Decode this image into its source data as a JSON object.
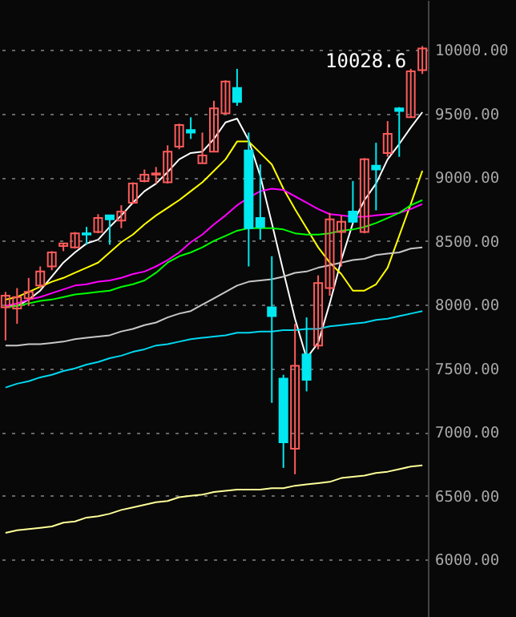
{
  "chart_data": {
    "type": "candlestick",
    "categories": [
      null,
      null,
      null,
      null,
      null,
      null,
      null,
      null,
      null,
      null,
      null,
      null,
      null,
      null,
      null,
      null,
      null,
      null,
      null,
      null,
      null,
      null,
      null,
      null,
      null,
      null,
      null,
      null,
      null,
      null,
      null,
      null,
      null,
      null,
      null,
      null,
      null
    ],
    "ohlc": [
      [
        7980,
        8100,
        7720,
        8070
      ],
      [
        7970,
        8130,
        7850,
        8060
      ],
      [
        8050,
        8210,
        7990,
        8100
      ],
      [
        8150,
        8300,
        8130,
        8260
      ],
      [
        8300,
        8420,
        8270,
        8410
      ],
      [
        8460,
        8480,
        8420,
        8480
      ],
      [
        8450,
        8570,
        8440,
        8560
      ],
      [
        8560,
        8610,
        8470,
        8550
      ],
      [
        8570,
        8710,
        8560,
        8680
      ],
      [
        8700,
        8700,
        8470,
        8670
      ],
      [
        8660,
        8780,
        8600,
        8730
      ],
      [
        8800,
        8960,
        8790,
        8950
      ],
      [
        8970,
        9060,
        8960,
        9020
      ],
      [
        9020,
        9080,
        8950,
        9030
      ],
      [
        8960,
        9250,
        8950,
        9200
      ],
      [
        9240,
        9420,
        9220,
        9410
      ],
      [
        9370,
        9470,
        9300,
        9350
      ],
      [
        9110,
        9350,
        9110,
        9170
      ],
      [
        9200,
        9600,
        9200,
        9540
      ],
      [
        9500,
        9760,
        9500,
        9750
      ],
      [
        9700,
        9850,
        9560,
        9590
      ],
      [
        9210,
        9350,
        8300,
        8600
      ],
      [
        8680,
        9100,
        8510,
        8610
      ],
      [
        7980,
        8380,
        7230,
        7910
      ],
      [
        7420,
        7450,
        6720,
        6920
      ],
      [
        6870,
        7850,
        6670,
        7520
      ],
      [
        7610,
        7900,
        7320,
        7410
      ],
      [
        7680,
        8230,
        7650,
        8170
      ],
      [
        8130,
        8720,
        8070,
        8670
      ],
      [
        8570,
        8700,
        8300,
        8650
      ],
      [
        8730,
        8970,
        8640,
        8650
      ],
      [
        8570,
        9150,
        8560,
        9140
      ],
      [
        9090,
        9270,
        8740,
        9060
      ],
      [
        9190,
        9440,
        9160,
        9340
      ],
      [
        9540,
        9550,
        9160,
        9520
      ],
      [
        9470,
        9850,
        9470,
        9830
      ],
      [
        9840,
        10028.6,
        9810,
        10010
      ]
    ],
    "colors": [
      "#ff5b5b",
      "#ff5b5b",
      "#ff5b5b",
      "#ff5b5b",
      "#ff5b5b",
      "#ff5b5b",
      "#ff5b5b",
      "#00e8f0",
      "#ff5b5b",
      "#00e8f0",
      "#ff5b5b",
      "#ff5b5b",
      "#ff5b5b",
      "#ff5b5b",
      "#ff5b5b",
      "#ff5b5b",
      "#00e8f0",
      "#ff5b5b",
      "#ff5b5b",
      "#ff5b5b",
      "#00e8f0",
      "#00e8f0",
      "#00e8f0",
      "#00e8f0",
      "#00e8f0",
      "#ff5b5b",
      "#00e8f0",
      "#ff5b5b",
      "#ff5b5b",
      "#ff5b5b",
      "#00e8f0",
      "#ff5b5b",
      "#00e8f0",
      "#ff5b5b",
      "#00e8f0",
      "#ff5b5b",
      "#ff5b5b"
    ],
    "series": [
      {
        "type": "line",
        "color": "#ffffff",
        "values": [
          7990,
          7990,
          8040,
          8110,
          8220,
          8330,
          8410,
          8480,
          8510,
          8610,
          8700,
          8800,
          8890,
          8950,
          9040,
          9140,
          9190,
          9200,
          9300,
          9430,
          9460,
          9290,
          9010,
          8640,
          8260,
          7890,
          7580,
          7700,
          8010,
          8350,
          8640,
          8820,
          8950,
          9140,
          9260,
          9390,
          9510
        ]
      },
      {
        "type": "line",
        "color": "#ffff00",
        "values": [
          8040,
          8060,
          8100,
          8140,
          8180,
          8210,
          8250,
          8290,
          8330,
          8410,
          8490,
          8550,
          8630,
          8700,
          8760,
          8820,
          8890,
          8960,
          9050,
          9140,
          9280,
          9280,
          9190,
          9100,
          8910,
          8750,
          8600,
          8450,
          8330,
          8240,
          8110,
          8110,
          8160,
          8290,
          8540,
          8790,
          9050
        ]
      },
      {
        "type": "line",
        "color": "#ff00ff",
        "values": [
          7990,
          8010,
          8040,
          8060,
          8090,
          8120,
          8150,
          8160,
          8180,
          8190,
          8210,
          8240,
          8260,
          8300,
          8350,
          8410,
          8490,
          8550,
          8630,
          8700,
          8780,
          8840,
          8890,
          8910,
          8900,
          8850,
          8800,
          8750,
          8710,
          8700,
          8690,
          8690,
          8700,
          8710,
          8720,
          8750,
          8790
        ]
      },
      {
        "type": "line",
        "color": "#00ff00",
        "values": [
          7980,
          7990,
          8010,
          8030,
          8040,
          8060,
          8080,
          8090,
          8100,
          8110,
          8140,
          8160,
          8190,
          8250,
          8330,
          8380,
          8410,
          8450,
          8500,
          8540,
          8580,
          8600,
          8600,
          8600,
          8590,
          8560,
          8550,
          8550,
          8560,
          8580,
          8590,
          8610,
          8640,
          8680,
          8720,
          8780,
          8820
        ]
      },
      {
        "type": "line",
        "color": "#c8c8c8",
        "values": [
          7680,
          7680,
          7690,
          7690,
          7700,
          7710,
          7730,
          7740,
          7750,
          7760,
          7790,
          7810,
          7840,
          7860,
          7900,
          7930,
          7950,
          8000,
          8050,
          8100,
          8150,
          8180,
          8190,
          8200,
          8220,
          8250,
          8260,
          8290,
          8310,
          8330,
          8350,
          8360,
          8390,
          8400,
          8410,
          8440,
          8450
        ]
      },
      {
        "type": "line",
        "color": "#00d8f0",
        "values": [
          7350,
          7380,
          7400,
          7430,
          7450,
          7480,
          7500,
          7530,
          7550,
          7580,
          7600,
          7630,
          7650,
          7680,
          7690,
          7710,
          7730,
          7740,
          7750,
          7760,
          7780,
          7780,
          7790,
          7790,
          7800,
          7800,
          7810,
          7810,
          7830,
          7840,
          7850,
          7860,
          7880,
          7890,
          7910,
          7930,
          7950
        ]
      },
      {
        "type": "line",
        "color": "#ffff99",
        "values": [
          6210,
          6230,
          6240,
          6250,
          6260,
          6290,
          6300,
          6330,
          6340,
          6360,
          6390,
          6410,
          6430,
          6450,
          6460,
          6490,
          6500,
          6510,
          6530,
          6540,
          6550,
          6550,
          6550,
          6560,
          6560,
          6580,
          6590,
          6600,
          6610,
          6640,
          6650,
          6660,
          6680,
          6690,
          6710,
          6730,
          6740
        ]
      }
    ],
    "ylim": [
      5550,
      10390
    ],
    "yticks": [
      {
        "value": 6000,
        "label": "6000.00"
      },
      {
        "value": 6500,
        "label": "6500.00"
      },
      {
        "value": 7000,
        "label": "7000.00"
      },
      {
        "value": 7500,
        "label": "7500.00"
      },
      {
        "value": 8000,
        "label": "8000.00"
      },
      {
        "value": 8500,
        "label": "8500.00"
      },
      {
        "value": 9000,
        "label": "9000.00"
      },
      {
        "value": 9500,
        "label": "9500.00"
      },
      {
        "value": 10000,
        "label": "10000.00"
      }
    ],
    "grid": "y",
    "annotations": [
      "10028.6"
    ]
  }
}
